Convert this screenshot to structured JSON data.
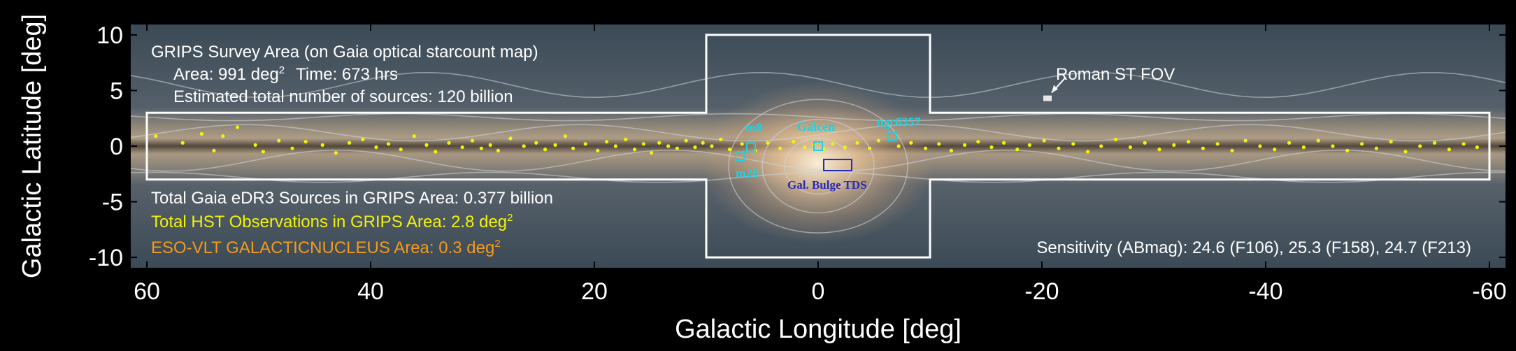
{
  "chart_data": {
    "type": "scatter",
    "title": "",
    "xlabel": "Galactic Longitude [deg]",
    "ylabel": "Galactic Latitude [deg]",
    "xlim": [
      61.5,
      -61.5
    ],
    "ylim": [
      -11,
      11
    ],
    "x_ticks": [
      60,
      40,
      20,
      0,
      -20,
      -40,
      -60
    ],
    "x_tick_labels": [
      "60",
      "40",
      "20",
      "0",
      "-20",
      "-40",
      "-60"
    ],
    "y_ticks": [
      10,
      5,
      0,
      -5,
      -10
    ],
    "y_tick_labels": [
      "10",
      "5",
      "0",
      "-5",
      "-10"
    ],
    "grid": false,
    "background": "Gaia optical starcount map of the Galactic plane",
    "survey_footprint": {
      "strip": {
        "l": [
          60,
          -60
        ],
        "b": [
          -3,
          3
        ]
      },
      "bulge": {
        "l": [
          10,
          -10
        ],
        "b": [
          -10,
          10
        ]
      }
    },
    "annotations": {
      "survey_title": "GRIPS Survey Area (on Gaia optical starcount map)",
      "area_prefix": "Area: 991 deg",
      "area_sup": "2",
      "time": "Time: 673 hrs",
      "sources": "Estimated total number of sources: 120 billion",
      "gaia_total": "Total Gaia eDR3 Sources in GRIPS Area: 0.377 billion",
      "hst_prefix": "Total HST Observations in GRIPS Area: 2.8 deg",
      "hst_sup": "2",
      "eso_prefix": "ESO-VLT GALACTICNUCLEUS Area: 0.3 deg",
      "eso_sup": "2",
      "sensitivity": "Sensitivity  (ABmag):  24.6 (F106), 25.3 (F158), 24.7 (F213)",
      "roman_fov": "Roman ST FOV",
      "bulge_tds": "Gal. Bulge TDS"
    },
    "labeled_fields": [
      {
        "name": "m8",
        "l": 6.0,
        "b": -0.1
      },
      {
        "name": "Galcen",
        "l": 0.0,
        "b": 0.0
      },
      {
        "name": "ngc6357",
        "l": -6.6,
        "b": 0.9
      },
      {
        "name": "m20",
        "l": 7.0,
        "b": -0.9
      }
    ],
    "gal_bulge_tds": {
      "l": [
        -0.5,
        -3.0
      ],
      "b": [
        -1.2,
        -2.2
      ]
    },
    "roman_fov_marker": {
      "l": -20.5,
      "b": 4.3
    },
    "hst_fields": [
      {
        "l": 59.2,
        "b": 0.9
      },
      {
        "l": 56.8,
        "b": 0.3
      },
      {
        "l": 55.1,
        "b": 1.1
      },
      {
        "l": 54.0,
        "b": -0.4
      },
      {
        "l": 53.2,
        "b": 0.9
      },
      {
        "l": 51.9,
        "b": 1.7
      },
      {
        "l": 50.3,
        "b": 0.1
      },
      {
        "l": 49.6,
        "b": -0.5
      },
      {
        "l": 48.2,
        "b": 0.5
      },
      {
        "l": 47.0,
        "b": -0.2
      },
      {
        "l": 45.8,
        "b": 0.4
      },
      {
        "l": 44.3,
        "b": 0.1
      },
      {
        "l": 43.1,
        "b": -0.6
      },
      {
        "l": 41.9,
        "b": 0.3
      },
      {
        "l": 40.7,
        "b": 0.6
      },
      {
        "l": 39.5,
        "b": -0.1
      },
      {
        "l": 38.4,
        "b": 0.2
      },
      {
        "l": 37.3,
        "b": -0.3
      },
      {
        "l": 36.1,
        "b": 0.9
      },
      {
        "l": 35.0,
        "b": 0.1
      },
      {
        "l": 34.2,
        "b": -0.5
      },
      {
        "l": 33.0,
        "b": 0.3
      },
      {
        "l": 31.8,
        "b": -0.1
      },
      {
        "l": 30.9,
        "b": 0.5
      },
      {
        "l": 30.1,
        "b": -0.2
      },
      {
        "l": 29.3,
        "b": 0.1
      },
      {
        "l": 28.6,
        "b": -0.4
      },
      {
        "l": 27.5,
        "b": 0.7
      },
      {
        "l": 26.3,
        "b": 0.0
      },
      {
        "l": 25.2,
        "b": 0.3
      },
      {
        "l": 24.4,
        "b": -0.3
      },
      {
        "l": 23.5,
        "b": 0.1
      },
      {
        "l": 22.6,
        "b": 0.9
      },
      {
        "l": 21.9,
        "b": -0.2
      },
      {
        "l": 20.8,
        "b": 0.2
      },
      {
        "l": 19.7,
        "b": -0.4
      },
      {
        "l": 18.9,
        "b": 0.4
      },
      {
        "l": 18.1,
        "b": 0.0
      },
      {
        "l": 17.2,
        "b": 0.6
      },
      {
        "l": 16.4,
        "b": -0.3
      },
      {
        "l": 15.6,
        "b": 0.2
      },
      {
        "l": 14.9,
        "b": -0.6
      },
      {
        "l": 14.2,
        "b": 0.3
      },
      {
        "l": 13.4,
        "b": 0.0
      },
      {
        "l": 12.6,
        "b": -0.2
      },
      {
        "l": 11.8,
        "b": 0.5
      },
      {
        "l": 11.0,
        "b": -0.1
      },
      {
        "l": 10.3,
        "b": 0.3
      },
      {
        "l": 9.5,
        "b": 0.0
      },
      {
        "l": 8.7,
        "b": 0.6
      },
      {
        "l": 7.9,
        "b": -0.3
      },
      {
        "l": 6.8,
        "b": 0.2
      },
      {
        "l": 5.6,
        "b": -0.4
      },
      {
        "l": 4.5,
        "b": 0.3
      },
      {
        "l": 3.4,
        "b": -0.2
      },
      {
        "l": 2.2,
        "b": 0.4
      },
      {
        "l": 1.2,
        "b": -0.1
      },
      {
        "l": 0.4,
        "b": 0.1
      },
      {
        "l": -0.5,
        "b": -0.3
      },
      {
        "l": -1.3,
        "b": 0.2
      },
      {
        "l": -2.4,
        "b": -0.1
      },
      {
        "l": -3.5,
        "b": 0.3
      },
      {
        "l": -4.6,
        "b": -0.2
      },
      {
        "l": -5.4,
        "b": 0.5
      },
      {
        "l": -7.2,
        "b": 0.0
      },
      {
        "l": -8.3,
        "b": 0.3
      },
      {
        "l": -9.6,
        "b": -0.2
      },
      {
        "l": -10.8,
        "b": 0.2
      },
      {
        "l": -11.9,
        "b": -0.4
      },
      {
        "l": -13.1,
        "b": 0.1
      },
      {
        "l": -14.3,
        "b": 0.4
      },
      {
        "l": -15.5,
        "b": -0.1
      },
      {
        "l": -16.6,
        "b": 0.3
      },
      {
        "l": -17.8,
        "b": -0.3
      },
      {
        "l": -18.9,
        "b": 0.1
      },
      {
        "l": -20.2,
        "b": 0.5
      },
      {
        "l": -21.5,
        "b": -0.2
      },
      {
        "l": -22.8,
        "b": 0.2
      },
      {
        "l": -24.1,
        "b": -0.5
      },
      {
        "l": -25.3,
        "b": 0.0
      },
      {
        "l": -26.6,
        "b": 0.6
      },
      {
        "l": -27.9,
        "b": -0.1
      },
      {
        "l": -29.2,
        "b": 0.3
      },
      {
        "l": -30.5,
        "b": -0.3
      },
      {
        "l": -31.8,
        "b": 0.1
      },
      {
        "l": -33.1,
        "b": 0.4
      },
      {
        "l": -34.4,
        "b": -0.2
      },
      {
        "l": -35.7,
        "b": 0.2
      },
      {
        "l": -37.0,
        "b": -0.4
      },
      {
        "l": -38.2,
        "b": 0.5
      },
      {
        "l": -39.5,
        "b": 0.0
      },
      {
        "l": -40.8,
        "b": -0.3
      },
      {
        "l": -42.1,
        "b": 0.3
      },
      {
        "l": -43.4,
        "b": -0.1
      },
      {
        "l": -44.7,
        "b": 0.5
      },
      {
        "l": -46.0,
        "b": 0.0
      },
      {
        "l": -47.3,
        "b": -0.4
      },
      {
        "l": -48.6,
        "b": 0.2
      },
      {
        "l": -49.9,
        "b": -0.2
      },
      {
        "l": -51.2,
        "b": 0.4
      },
      {
        "l": -52.5,
        "b": -0.5
      },
      {
        "l": -53.8,
        "b": 0.0
      },
      {
        "l": -55.1,
        "b": 0.3
      },
      {
        "l": -56.4,
        "b": -0.3
      },
      {
        "l": -57.7,
        "b": 0.2
      },
      {
        "l": -58.9,
        "b": -0.1
      }
    ],
    "colors": {
      "figure_background": "#000000",
      "axis_text": "#ffffff",
      "survey_outline": "#ffffff",
      "hst_fields": "#f2f20a",
      "eso_text": "#f39a1f",
      "labeled_fields": "#19d4e6",
      "gal_bulge_tds": "#2a2ab8"
    }
  }
}
